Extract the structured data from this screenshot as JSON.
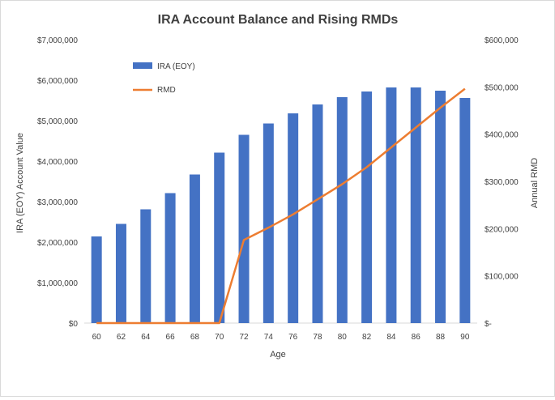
{
  "chart_data": {
    "type": "bar",
    "title": "IRA Account Balance and Rising RMDs",
    "xlabel": "Age",
    "ylabel": "IRA (EOY) Account Value",
    "y2label": "Annual RMD",
    "categories": [
      "60",
      "62",
      "64",
      "66",
      "68",
      "70",
      "72",
      "74",
      "76",
      "78",
      "80",
      "82",
      "84",
      "86",
      "88",
      "90"
    ],
    "ylim": [
      0,
      7000000
    ],
    "y2lim": [
      0,
      600000
    ],
    "y_ticks": [
      "$0",
      "$1,000,000",
      "$2,000,000",
      "$3,000,000",
      "$4,000,000",
      "$5,000,000",
      "$6,000,000",
      "$7,000,000"
    ],
    "y2_ticks": [
      "$-",
      "$100,000",
      "$200,000",
      "$300,000",
      "$400,000",
      "$500,000",
      "$600,000"
    ],
    "grid": false,
    "legend_position": "top-left inside plot",
    "series": [
      {
        "name": "IRA (EOY)",
        "type": "bar",
        "axis": "left",
        "color": "#4472C4",
        "values": [
          2140000,
          2450000,
          2810000,
          3210000,
          3670000,
          4210000,
          4650000,
          4930000,
          5180000,
          5400000,
          5580000,
          5720000,
          5820000,
          5820000,
          5740000,
          5560000
        ]
      },
      {
        "name": "RMD",
        "type": "line",
        "axis": "right",
        "color": "#ED7D31",
        "values": [
          0,
          0,
          0,
          0,
          0,
          0,
          176000,
          202000,
          230000,
          262000,
          294000,
          330000,
          372000,
          414000,
          456000,
          496000
        ]
      }
    ]
  }
}
